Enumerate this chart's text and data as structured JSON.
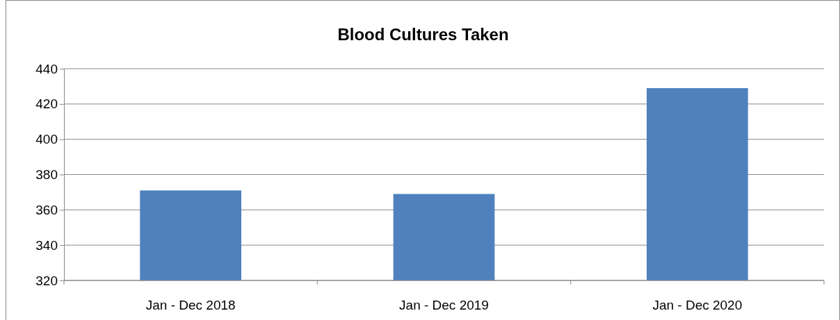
{
  "chart_data": {
    "type": "bar",
    "title": "Blood Cultures Taken",
    "categories": [
      "Jan - Dec 2018",
      "Jan - Dec 2019",
      "Jan - Dec 2020"
    ],
    "values": [
      371,
      369,
      429
    ],
    "color": "#4f81bd",
    "ylim": [
      320,
      440
    ],
    "yticks": [
      320,
      340,
      360,
      380,
      400,
      420,
      440
    ],
    "grid": "y"
  }
}
